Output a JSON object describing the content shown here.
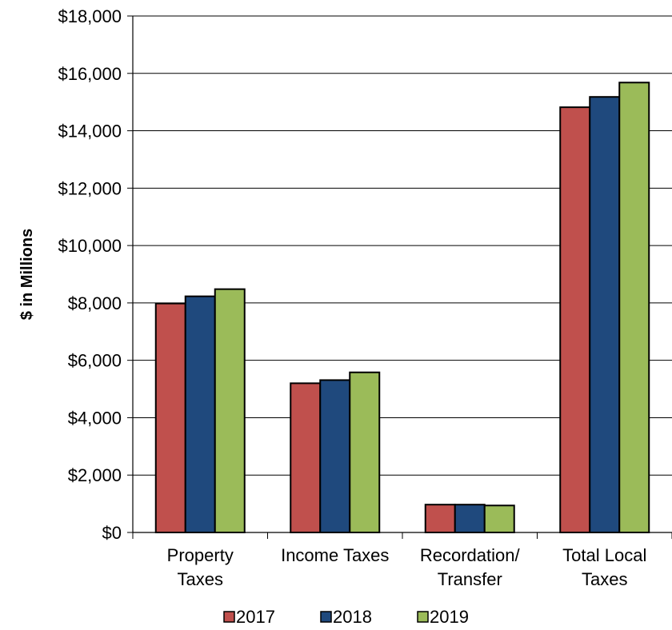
{
  "chart_data": {
    "type": "bar",
    "title": "",
    "ylabel": "$ in Millions",
    "xlabel": "",
    "categories": [
      [
        "Property",
        "Taxes"
      ],
      [
        "Income Taxes"
      ],
      [
        "Recordation/",
        "Transfer"
      ],
      [
        "Total Local",
        "Taxes"
      ]
    ],
    "series": [
      {
        "name": "2017",
        "color": "#C0504D",
        "values": [
          7980,
          5200,
          970,
          14820
        ]
      },
      {
        "name": "2018",
        "color": "#1F497D",
        "values": [
          8230,
          5310,
          970,
          15180
        ]
      },
      {
        "name": "2019",
        "color": "#9BBB59",
        "values": [
          8480,
          5580,
          940,
          15680
        ]
      }
    ],
    "ylim": [
      0,
      18000
    ],
    "yticks": [
      0,
      2000,
      4000,
      6000,
      8000,
      10000,
      12000,
      14000,
      16000,
      18000
    ],
    "ytick_labels": [
      "$0",
      "$2,000",
      "$4,000",
      "$6,000",
      "$8,000",
      "$10,000",
      "$12,000",
      "$14,000",
      "$16,000",
      "$18,000"
    ],
    "grid": true,
    "legend_position": "bottom"
  }
}
